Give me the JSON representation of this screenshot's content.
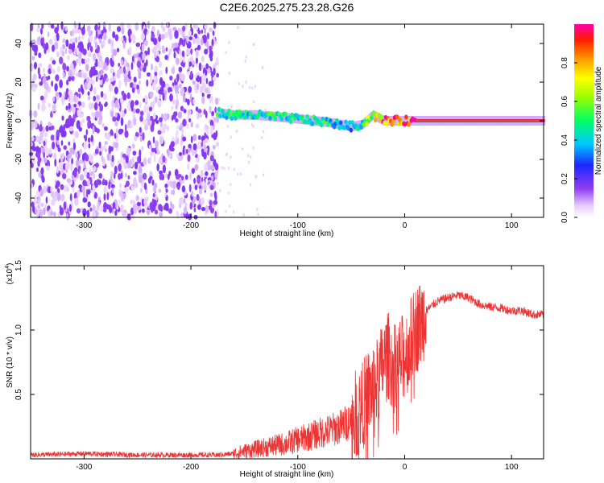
{
  "title": "C2E6.2025.275.23.28.G26",
  "chart_data": [
    {
      "type": "heatmap",
      "name": "spectrogram",
      "xlabel": "Height of straight line (km)",
      "ylabel": "Frequency (Hz)",
      "xlim": [
        -350,
        130
      ],
      "ylim": [
        -50,
        50
      ],
      "x_ticks": [
        -300,
        -200,
        -100,
        0,
        100
      ],
      "x_tick_labels": [
        "-300",
        "-200",
        "-100",
        "0",
        "100"
      ],
      "y_ticks": [
        -40,
        -20,
        0,
        20,
        40
      ],
      "y_tick_labels": [
        "-40",
        "-20",
        "0",
        "20",
        "40"
      ],
      "noise_region_x": [
        -350,
        -175
      ],
      "signal_track": {
        "x": [
          -175,
          -160,
          -140,
          -120,
          -100,
          -85,
          -70,
          -60,
          -50,
          -40,
          -30,
          -20,
          -10,
          0,
          10,
          130
        ],
        "freq": [
          4,
          3,
          3,
          2,
          1,
          0,
          -1,
          -2,
          -3,
          -2,
          3,
          0,
          0,
          0,
          0,
          0
        ],
        "amplitude": [
          0.5,
          0.45,
          0.45,
          0.5,
          0.45,
          0.5,
          0.45,
          0.4,
          0.4,
          0.5,
          0.7,
          0.9,
          0.85,
          0.9,
          0.95,
          0.95
        ]
      },
      "colorbar": {
        "label": "Normalized spectral amplitude",
        "range": [
          0,
          1
        ],
        "ticks": [
          0.0,
          0.2,
          0.4,
          0.6,
          0.8
        ],
        "tick_labels": [
          "0.0",
          "0.2",
          "0.4",
          "0.6",
          "0.8"
        ]
      }
    },
    {
      "type": "line",
      "name": "snr",
      "xlabel": "Height of straight line (km)",
      "ylabel": "SNR (10 * v/v)",
      "scale_label": "(x10",
      "scale_exp": "4",
      "scale_close": ")",
      "xlim": [
        -350,
        130
      ],
      "ylim": [
        0,
        1.5
      ],
      "x_ticks": [
        -300,
        -200,
        -100,
        0,
        100
      ],
      "x_tick_labels": [
        "-300",
        "-200",
        "-100",
        "0",
        "100"
      ],
      "y_ticks": [
        0.5,
        1.0,
        1.5
      ],
      "y_tick_labels": [
        "0.5",
        "1.0",
        "1.5"
      ],
      "color": "#ee3333",
      "x": [
        -350,
        -300,
        -250,
        -200,
        -175,
        -160,
        -150,
        -130,
        -110,
        -100,
        -90,
        -80,
        -70,
        -60,
        -50,
        -40,
        -35,
        -30,
        -25,
        -20,
        -15,
        -10,
        -5,
        0,
        5,
        10,
        15,
        20,
        30,
        40,
        50,
        60,
        70,
        80,
        90,
        100,
        110,
        120,
        130
      ],
      "y": [
        0.03,
        0.04,
        0.03,
        0.03,
        0.03,
        0.04,
        0.06,
        0.09,
        0.12,
        0.15,
        0.17,
        0.2,
        0.22,
        0.25,
        0.3,
        0.4,
        0.5,
        0.55,
        0.6,
        0.75,
        0.8,
        0.7,
        0.75,
        0.8,
        0.9,
        1.0,
        1.05,
        1.15,
        1.22,
        1.25,
        1.27,
        1.25,
        1.2,
        1.18,
        1.17,
        1.15,
        1.15,
        1.12,
        1.12
      ]
    }
  ]
}
